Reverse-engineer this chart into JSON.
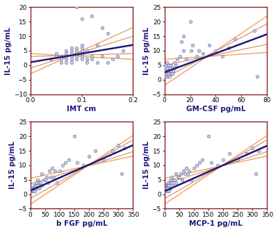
{
  "plots": [
    {
      "xlabel": "IMT cm",
      "ylabel": "IL-15 pg/mL",
      "xlim": [
        0.0,
        0.2
      ],
      "ylim": [
        -10,
        20
      ],
      "xticks": [
        0.0,
        0.1,
        0.2
      ],
      "yticks": [
        -10,
        -5,
        0,
        5,
        10,
        15,
        20
      ],
      "scatter_x": [
        0.04,
        0.05,
        0.05,
        0.06,
        0.06,
        0.06,
        0.07,
        0.07,
        0.07,
        0.07,
        0.07,
        0.08,
        0.08,
        0.08,
        0.08,
        0.08,
        0.08,
        0.09,
        0.09,
        0.09,
        0.09,
        0.09,
        0.09,
        0.1,
        0.1,
        0.1,
        0.1,
        0.1,
        0.1,
        0.1,
        0.11,
        0.11,
        0.11,
        0.12,
        0.12,
        0.12,
        0.13,
        0.13,
        0.14,
        0.14,
        0.15,
        0.15,
        0.16,
        0.17,
        0.18
      ],
      "scatter_y": [
        2,
        3,
        4,
        1,
        2,
        3,
        1,
        2,
        3,
        4,
        5,
        1,
        2,
        3,
        4,
        5,
        6,
        2,
        3,
        4,
        5,
        6,
        20,
        2,
        3,
        4,
        5,
        6,
        7,
        16,
        1,
        2,
        5,
        2,
        3,
        17,
        1,
        7,
        3,
        13,
        1,
        11,
        2,
        3,
        5
      ],
      "reg": [
        30.0,
        1.0
      ],
      "ci_outer": [
        80.0,
        -3.0
      ],
      "ci_outer_lo": [
        -10.0,
        4.0
      ],
      "ci_inner": [
        55.0,
        -1.0
      ],
      "ci_inner_lo": [
        5.0,
        3.0
      ]
    },
    {
      "xlabel": "GM-CSF pg/mL",
      "ylabel": "IL-15 pg/mL",
      "xlim": [
        0,
        80
      ],
      "ylim": [
        -5,
        25
      ],
      "xticks": [
        0,
        20,
        40,
        60,
        80
      ],
      "yticks": [
        -5,
        0,
        5,
        10,
        15,
        20,
        25
      ],
      "scatter_x": [
        0,
        0,
        1,
        1,
        1,
        2,
        2,
        2,
        2,
        2,
        3,
        3,
        3,
        3,
        4,
        4,
        4,
        5,
        5,
        5,
        6,
        6,
        7,
        8,
        8,
        9,
        10,
        12,
        13,
        15,
        15,
        17,
        20,
        21,
        22,
        25,
        27,
        30,
        35,
        40,
        45,
        50,
        55,
        70,
        72
      ],
      "scatter_y": [
        2,
        3,
        1,
        4,
        5,
        1,
        2,
        3,
        4,
        6,
        1,
        2,
        3,
        5,
        1,
        3,
        4,
        2,
        3,
        5,
        2,
        4,
        3,
        4,
        6,
        5,
        7,
        8,
        13,
        15,
        10,
        7,
        20,
        10,
        12,
        8,
        10,
        9,
        12,
        10,
        8,
        11,
        14,
        17,
        1
      ],
      "reg": [
        0.165,
        2.5
      ],
      "ci_outer": [
        0.3,
        -2.0
      ],
      "ci_outer_lo": [
        0.03,
        7.0
      ],
      "ci_inner": [
        0.235,
        0.5
      ],
      "ci_inner_lo": [
        0.09,
        5.0
      ]
    },
    {
      "xlabel": "b FGF pg/mL",
      "ylabel": "IL-15 pg/mL",
      "xlim": [
        0,
        350
      ],
      "ylim": [
        -5,
        25
      ],
      "xticks": [
        0,
        50,
        100,
        150,
        200,
        250,
        300,
        350
      ],
      "yticks": [
        -5,
        0,
        5,
        10,
        15,
        20,
        25
      ],
      "scatter_x": [
        2,
        3,
        4,
        5,
        5,
        6,
        7,
        8,
        8,
        9,
        10,
        10,
        12,
        14,
        15,
        15,
        20,
        20,
        20,
        25,
        25,
        30,
        30,
        35,
        40,
        40,
        45,
        50,
        55,
        60,
        65,
        70,
        75,
        80,
        85,
        90,
        100,
        110,
        120,
        130,
        150,
        160,
        180,
        200,
        220,
        250,
        280,
        300,
        310,
        320
      ],
      "scatter_y": [
        1,
        1,
        1,
        1,
        2,
        1,
        1,
        1,
        2,
        2,
        1,
        2,
        2,
        3,
        1,
        2,
        2,
        3,
        4,
        3,
        5,
        2,
        4,
        4,
        3,
        7,
        5,
        5,
        6,
        4,
        8,
        6,
        9,
        6,
        8,
        4,
        8,
        10,
        11,
        12,
        20,
        11,
        10,
        13,
        15,
        12,
        15,
        17,
        7,
        16
      ],
      "reg": [
        0.045,
        1.2
      ],
      "ci_outer": [
        0.068,
        -3.5
      ],
      "ci_outer_lo": [
        0.022,
        5.5
      ],
      "ci_inner": [
        0.058,
        -1.5
      ],
      "ci_inner_lo": [
        0.032,
        3.5
      ]
    },
    {
      "xlabel": "MCP-1 pg/mL",
      "ylabel": "IL-15 pg/mL",
      "xlim": [
        0,
        350
      ],
      "ylim": [
        -5,
        25
      ],
      "xticks": [
        0,
        50,
        100,
        150,
        200,
        250,
        300,
        350
      ],
      "yticks": [
        -5,
        0,
        5,
        10,
        15,
        20,
        25
      ],
      "scatter_x": [
        2,
        3,
        4,
        5,
        5,
        6,
        7,
        8,
        8,
        9,
        10,
        10,
        12,
        14,
        15,
        15,
        20,
        20,
        20,
        25,
        25,
        30,
        30,
        35,
        40,
        40,
        45,
        50,
        55,
        60,
        65,
        70,
        75,
        80,
        85,
        90,
        100,
        110,
        120,
        130,
        150,
        160,
        180,
        200,
        220,
        250,
        280,
        300,
        310,
        320
      ],
      "scatter_y": [
        1,
        1,
        1,
        2,
        2,
        1,
        2,
        1,
        3,
        2,
        2,
        3,
        3,
        4,
        1,
        3,
        2,
        4,
        5,
        4,
        6,
        3,
        5,
        5,
        4,
        7,
        6,
        6,
        7,
        5,
        8,
        7,
        9,
        7,
        8,
        5,
        9,
        10,
        11,
        12,
        20,
        11,
        10,
        12,
        14,
        12,
        14,
        16,
        7,
        15
      ],
      "reg": [
        0.045,
        1.0
      ],
      "ci_outer": [
        0.068,
        -3.5
      ],
      "ci_outer_lo": [
        0.022,
        5.5
      ],
      "ci_inner": [
        0.058,
        -1.5
      ],
      "ci_inner_lo": [
        0.032,
        3.5
      ]
    }
  ],
  "scatter_edgecolor": "#7777AA",
  "scatter_facecolor": "#CCCCDD",
  "line_color": "#1A1A7A",
  "ci_outer_color": "#F0A060",
  "ci_inner_color": "#D08868",
  "border_color": "#8B2020",
  "bg_color": "#FFFFFF",
  "label_fontsize": 7.5,
  "tick_fontsize": 6.5
}
